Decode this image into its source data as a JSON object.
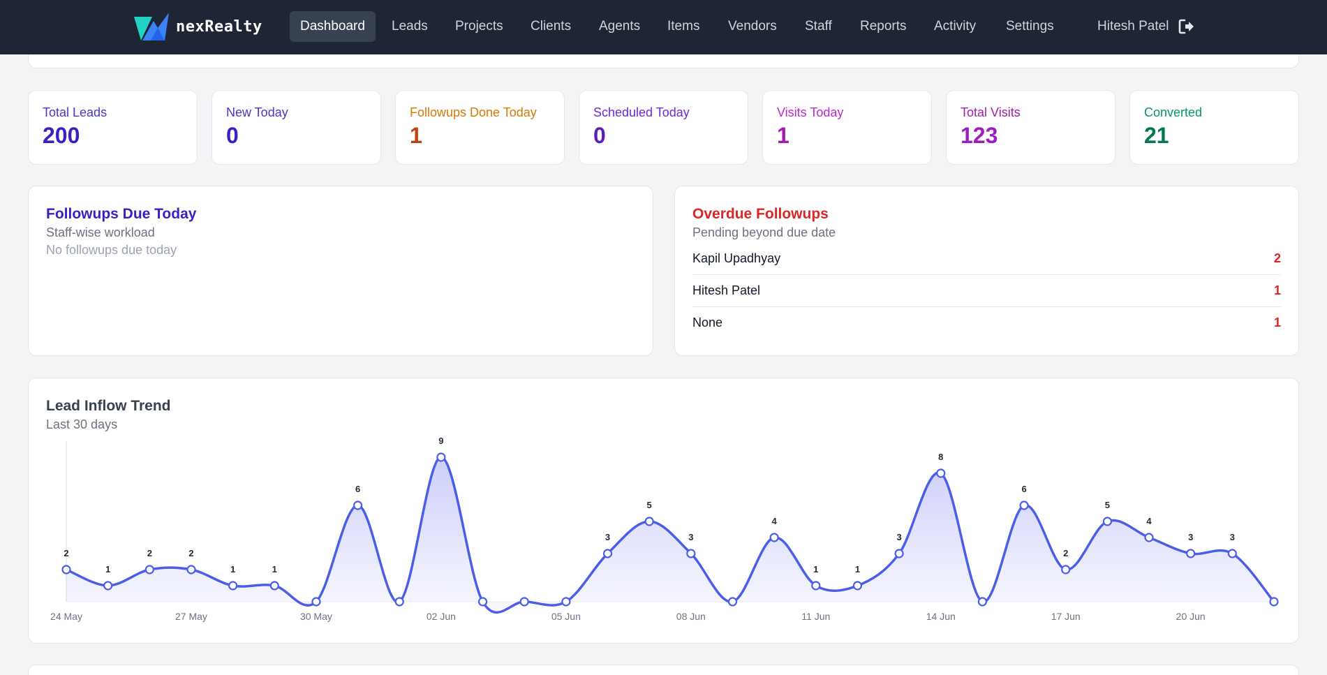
{
  "brand": {
    "name": "nexRealty"
  },
  "nav": {
    "items": [
      {
        "label": "Dashboard",
        "active": true
      },
      {
        "label": "Leads"
      },
      {
        "label": "Projects"
      },
      {
        "label": "Clients"
      },
      {
        "label": "Agents"
      },
      {
        "label": "Items"
      },
      {
        "label": "Vendors"
      },
      {
        "label": "Staff"
      },
      {
        "label": "Reports"
      },
      {
        "label": "Activity"
      },
      {
        "label": "Settings"
      }
    ],
    "user": "Hitesh Patel",
    "logout_icon": "logout-icon"
  },
  "stats": [
    {
      "label": "Total Leads",
      "value": "200",
      "label_color": "#4338ca",
      "value_color": "#3b1fc4"
    },
    {
      "label": "New Today",
      "value": "0",
      "label_color": "#4338ca",
      "value_color": "#3b1fc4"
    },
    {
      "label": "Followups Done Today",
      "value": "1",
      "label_color": "#d97706",
      "value_color": "#c2410c"
    },
    {
      "label": "Scheduled Today",
      "value": "0",
      "label_color": "#6d28d9",
      "value_color": "#5b21b6"
    },
    {
      "label": "Visits Today",
      "value": "1",
      "label_color": "#c026d3",
      "value_color": "#a21caf"
    },
    {
      "label": "Total Visits",
      "value": "123",
      "label_color": "#a21caf",
      "value_color": "#9d1dbf"
    },
    {
      "label": "Converted",
      "value": "21",
      "label_color": "#059669",
      "value_color": "#047857"
    }
  ],
  "followups_due": {
    "title": "Followups Due Today",
    "subtitle": "Staff-wise workload",
    "empty": "No followups due today"
  },
  "overdue": {
    "title": "Overdue Followups",
    "subtitle": "Pending beyond due date",
    "rows": [
      {
        "name": "Kapil Upadhyay",
        "count": "2"
      },
      {
        "name": "Hitesh Patel",
        "count": "1"
      },
      {
        "name": "None",
        "count": "1"
      }
    ]
  },
  "trend": {
    "title": "Lead Inflow Trend",
    "subtitle": "Last 30 days"
  },
  "chart_data": {
    "type": "area",
    "title": "Lead Inflow Trend",
    "subtitle": "Last 30 days",
    "x": [
      "24 May",
      "25 May",
      "26 May",
      "27 May",
      "28 May",
      "29 May",
      "30 May",
      "31 May",
      "01 Jun",
      "02 Jun",
      "03 Jun",
      "04 Jun",
      "05 Jun",
      "06 Jun",
      "07 Jun",
      "08 Jun",
      "09 Jun",
      "10 Jun",
      "11 Jun",
      "12 Jun",
      "13 Jun",
      "14 Jun",
      "15 Jun",
      "16 Jun",
      "17 Jun",
      "18 Jun",
      "19 Jun",
      "20 Jun",
      "21 Jun",
      "22 Jun"
    ],
    "tick_labels": [
      "24 May",
      "27 May",
      "30 May",
      "02 Jun",
      "05 Jun",
      "08 Jun",
      "11 Jun",
      "14 Jun",
      "17 Jun",
      "20 Jun"
    ],
    "values": [
      2,
      1,
      2,
      2,
      1,
      1,
      0,
      6,
      0,
      9,
      0,
      0,
      0,
      3,
      5,
      3,
      0,
      4,
      1,
      1,
      3,
      8,
      0,
      6,
      2,
      5,
      4,
      3,
      3,
      0
    ],
    "ylim": [
      0,
      10
    ],
    "line_color": "#4a5ee8",
    "grid": false
  }
}
